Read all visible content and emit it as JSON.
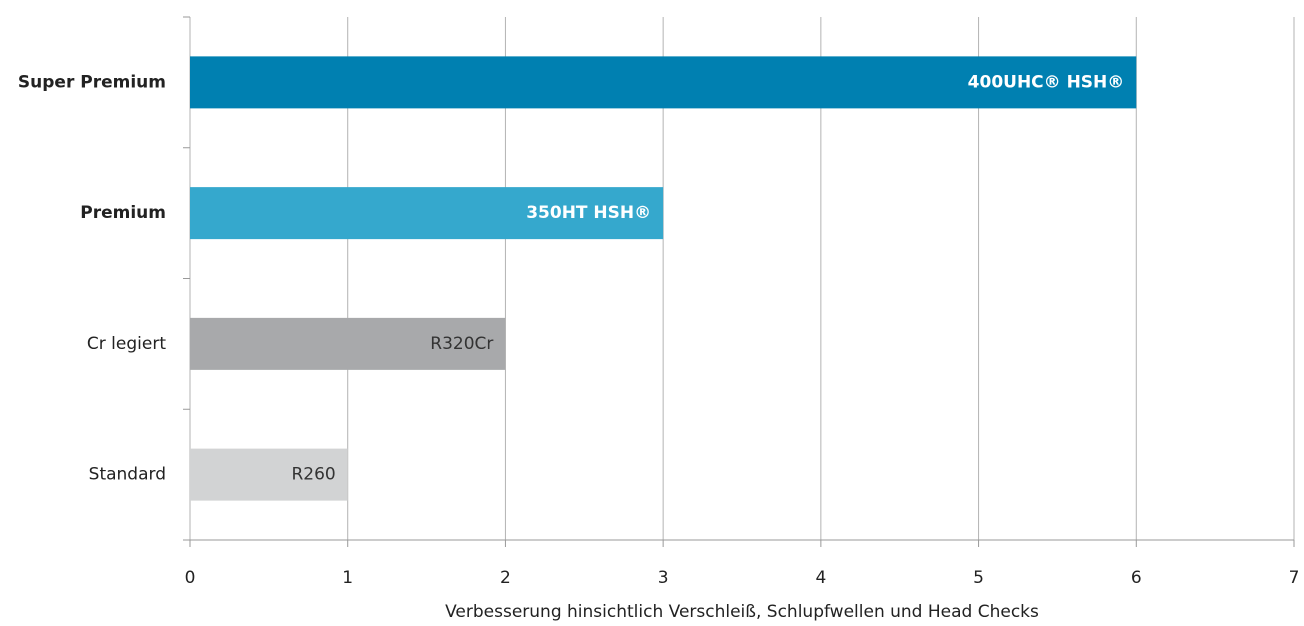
{
  "chart_data": {
    "type": "hbar",
    "categories": [
      "Super Premium",
      "Premium",
      "Cr legiert",
      "Standard"
    ],
    "values": [
      6,
      3,
      2,
      1
    ],
    "value_labels": [
      "400UHC® HSH®",
      "350HT HSH®",
      "R320Cr",
      "R260"
    ],
    "colors": [
      "#0080b1",
      "#35a8cd",
      "#a8a9ab",
      "#d2d3d4"
    ],
    "label_colors": [
      "#ffffff",
      "#ffffff",
      "#333333",
      "#333333"
    ],
    "bold": [
      true,
      true,
      false,
      false
    ],
    "xlabel": "Verbesserung hinsichtlich Verschleiß, Schlupfwellen und Head Checks",
    "xlim": [
      0,
      7
    ],
    "xticks": [
      0,
      1,
      2,
      3,
      4,
      5,
      6,
      7
    ],
    "grid": true
  }
}
